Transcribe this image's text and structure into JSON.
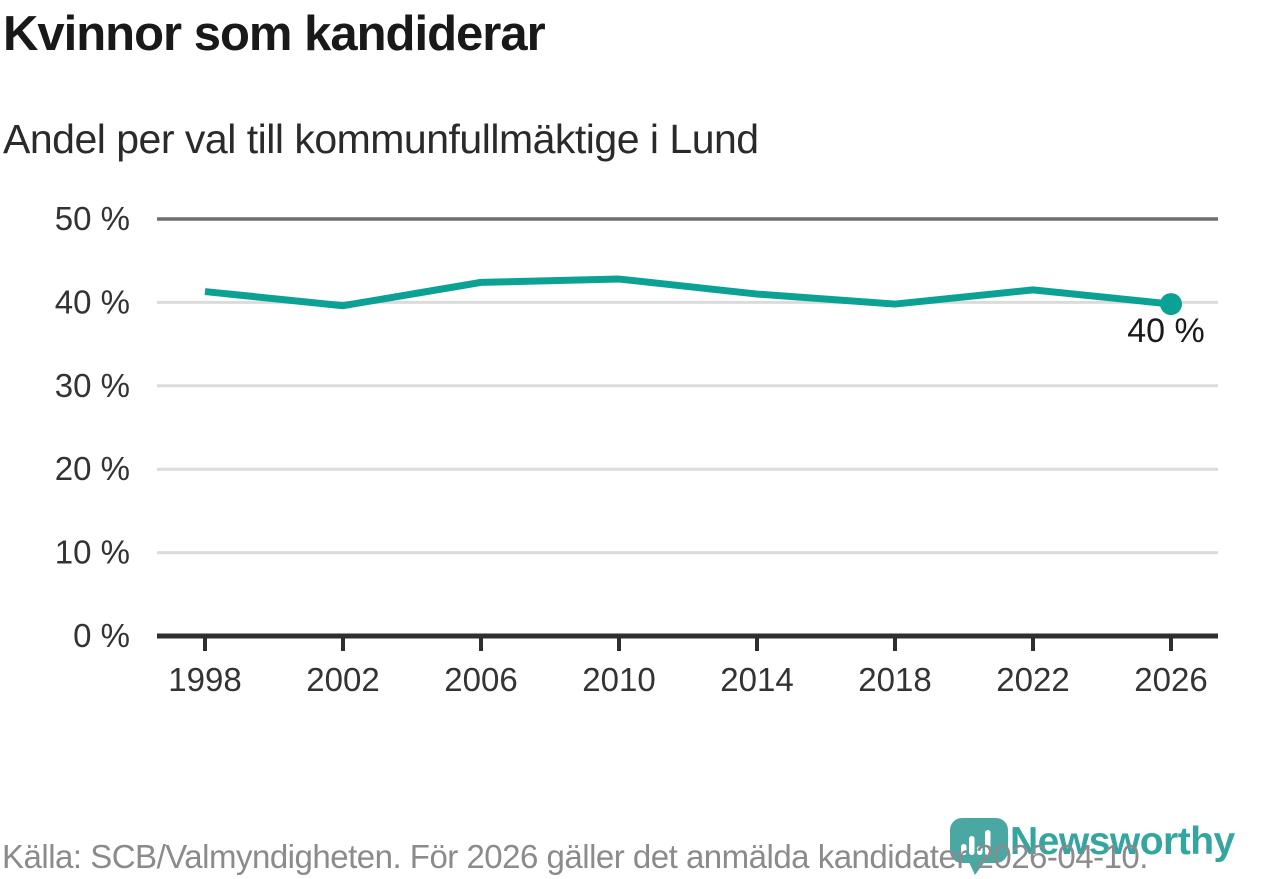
{
  "header": {
    "title": "Kvinnor som kandiderar",
    "subtitle": "Andel per val till kommunfullmäktige i Lund"
  },
  "chart_data": {
    "type": "line",
    "title": "Kvinnor som kandiderar",
    "subtitle": "Andel per val till kommunfullmäktige i Lund",
    "categories": [
      "1998",
      "2002",
      "2006",
      "2010",
      "2014",
      "2018",
      "2022",
      "2026"
    ],
    "values": [
      41.3,
      39.6,
      42.4,
      42.8,
      41.0,
      39.8,
      41.5,
      39.8
    ],
    "ylim": [
      0,
      50
    ],
    "ytick_values": [
      0,
      10,
      20,
      30,
      40,
      50
    ],
    "ytick_labels": [
      "0 %",
      "10 %",
      "20 %",
      "30 %",
      "40 %",
      "50 %"
    ],
    "end_point_label": "40 %",
    "grid": "horizontal",
    "legend": "none",
    "line_color": "#0BA295",
    "end_dot_color": "#0BA295",
    "gridline_color": "#DBDBDB",
    "top_gridline_color": "#6E6F72",
    "axis_color": "#2F2F2F",
    "tick_label_color": "#333333",
    "end_label_color": "#1A1A1A"
  },
  "footer": {
    "source": "Källa: SCB/Valmyndigheten. För 2026 gäller det anmälda kandidater 2026-04-10.",
    "brand": "Newsworthy",
    "brand_color": "#35A69F",
    "logo_color": "#4BA7A2",
    "logo_icon": "speech-bubble-bar-chart"
  }
}
